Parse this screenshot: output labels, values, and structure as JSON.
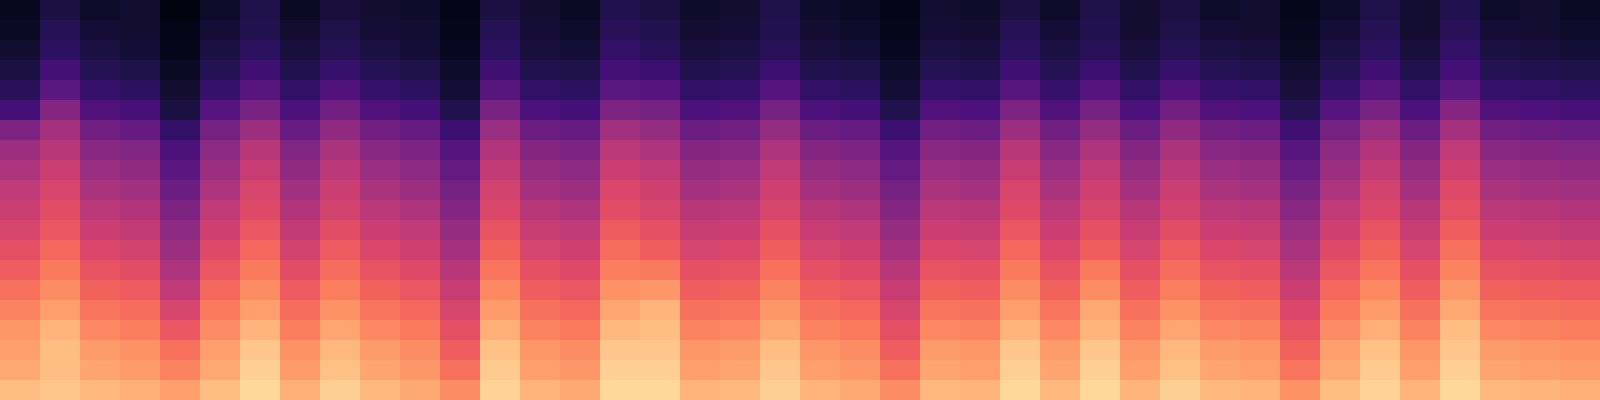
{
  "chart_data": {
    "type": "heatmap",
    "color": "magma",
    "tick_labels": false,
    "zlim": [
      0,
      100
    ],
    "z": [
      [
        6,
        12,
        8,
        9,
        3,
        8,
        13,
        7,
        11,
        9,
        8,
        4,
        12,
        9,
        7,
        14,
        12,
        8,
        9,
        13,
        8,
        7,
        4,
        9,
        8,
        12,
        8,
        13,
        9,
        12,
        8,
        9,
        5,
        8,
        13,
        9,
        14,
        8,
        9,
        7
      ],
      [
        7,
        15,
        10,
        9,
        4,
        10,
        14,
        9,
        13,
        10,
        9,
        5,
        15,
        10,
        8,
        16,
        14,
        9,
        10,
        14,
        9,
        8,
        5,
        10,
        9,
        15,
        10,
        14,
        9,
        13,
        10,
        9,
        6,
        10,
        15,
        9,
        16,
        10,
        9,
        8
      ],
      [
        9,
        17,
        12,
        10,
        5,
        12,
        17,
        11,
        15,
        12,
        10,
        6,
        17,
        11,
        10,
        18,
        16,
        11,
        12,
        16,
        11,
        10,
        6,
        12,
        11,
        17,
        12,
        16,
        11,
        15,
        12,
        11,
        7,
        12,
        17,
        11,
        18,
        12,
        11,
        10
      ],
      [
        12,
        22,
        15,
        13,
        7,
        15,
        21,
        14,
        19,
        15,
        13,
        8,
        21,
        14,
        13,
        22,
        20,
        14,
        15,
        20,
        14,
        13,
        8,
        15,
        14,
        21,
        15,
        20,
        14,
        19,
        15,
        14,
        9,
        15,
        21,
        14,
        22,
        15,
        14,
        13
      ],
      [
        16,
        28,
        19,
        17,
        9,
        19,
        27,
        18,
        25,
        19,
        17,
        10,
        27,
        18,
        17,
        28,
        26,
        18,
        19,
        26,
        18,
        17,
        10,
        19,
        18,
        27,
        19,
        26,
        18,
        25,
        19,
        18,
        11,
        19,
        27,
        18,
        28,
        19,
        18,
        17
      ],
      [
        22,
        38,
        25,
        23,
        12,
        26,
        35,
        24,
        33,
        25,
        22,
        14,
        35,
        24,
        22,
        36,
        34,
        24,
        25,
        34,
        24,
        22,
        14,
        25,
        24,
        36,
        25,
        34,
        24,
        33,
        25,
        24,
        15,
        26,
        35,
        24,
        38,
        25,
        24,
        23
      ],
      [
        36,
        46,
        33,
        30,
        18,
        34,
        44,
        31,
        41,
        33,
        30,
        20,
        43,
        32,
        30,
        45,
        42,
        32,
        33,
        42,
        32,
        30,
        20,
        33,
        32,
        44,
        33,
        42,
        32,
        41,
        33,
        32,
        21,
        34,
        43,
        32,
        46,
        33,
        32,
        31
      ],
      [
        44,
        50,
        39,
        37,
        24,
        40,
        50,
        37,
        47,
        39,
        36,
        26,
        49,
        38,
        36,
        51,
        48,
        38,
        39,
        48,
        38,
        36,
        26,
        39,
        38,
        50,
        39,
        48,
        38,
        47,
        39,
        38,
        27,
        40,
        49,
        38,
        52,
        39,
        38,
        37
      ],
      [
        48,
        55,
        43,
        41,
        28,
        44,
        54,
        41,
        51,
        43,
        40,
        30,
        53,
        42,
        40,
        55,
        52,
        42,
        43,
        52,
        42,
        40,
        30,
        43,
        42,
        54,
        43,
        52,
        42,
        51,
        43,
        42,
        31,
        44,
        53,
        42,
        56,
        43,
        42,
        41
      ],
      [
        52,
        58,
        47,
        45,
        32,
        48,
        58,
        45,
        55,
        47,
        44,
        34,
        57,
        46,
        44,
        59,
        56,
        46,
        47,
        56,
        46,
        44,
        34,
        47,
        46,
        58,
        47,
        56,
        46,
        55,
        47,
        46,
        35,
        48,
        57,
        46,
        60,
        47,
        46,
        45
      ],
      [
        55,
        61,
        51,
        49,
        36,
        52,
        60,
        49,
        57,
        51,
        48,
        38,
        59,
        50,
        48,
        61,
        58,
        50,
        51,
        58,
        50,
        48,
        38,
        51,
        50,
        60,
        51,
        58,
        50,
        57,
        51,
        50,
        39,
        52,
        59,
        50,
        62,
        51,
        50,
        49
      ],
      [
        58,
        64,
        55,
        53,
        40,
        56,
        64,
        53,
        61,
        55,
        52,
        42,
        63,
        54,
        52,
        65,
        62,
        54,
        55,
        62,
        54,
        52,
        42,
        55,
        54,
        64,
        55,
        62,
        54,
        61,
        55,
        54,
        43,
        56,
        63,
        54,
        66,
        55,
        54,
        53
      ],
      [
        62,
        68,
        59,
        57,
        44,
        60,
        68,
        57,
        65,
        59,
        56,
        46,
        67,
        58,
        56,
        69,
        66,
        58,
        59,
        66,
        58,
        56,
        46,
        59,
        58,
        68,
        59,
        66,
        58,
        65,
        59,
        58,
        47,
        60,
        67,
        58,
        70,
        59,
        58,
        57
      ],
      [
        66,
        72,
        63,
        61,
        48,
        64,
        72,
        61,
        69,
        63,
        60,
        50,
        71,
        62,
        60,
        73,
        72,
        62,
        63,
        70,
        62,
        60,
        50,
        63,
        62,
        72,
        63,
        72,
        62,
        69,
        63,
        62,
        51,
        64,
        71,
        62,
        74,
        63,
        62,
        61
      ],
      [
        70,
        76,
        67,
        65,
        52,
        68,
        76,
        65,
        73,
        67,
        64,
        54,
        75,
        66,
        64,
        77,
        78,
        66,
        67,
        74,
        66,
        64,
        54,
        67,
        66,
        76,
        67,
        76,
        66,
        73,
        67,
        66,
        55,
        68,
        75,
        66,
        78,
        67,
        66,
        65
      ],
      [
        74,
        80,
        71,
        69,
        58,
        72,
        80,
        69,
        77,
        71,
        68,
        58,
        79,
        70,
        68,
        81,
        84,
        70,
        71,
        78,
        70,
        68,
        58,
        71,
        70,
        80,
        71,
        82,
        70,
        77,
        71,
        70,
        59,
        72,
        79,
        70,
        82,
        71,
        70,
        69
      ],
      [
        78,
        84,
        75,
        73,
        64,
        76,
        84,
        73,
        81,
        75,
        72,
        62,
        83,
        74,
        72,
        85,
        86,
        74,
        75,
        82,
        74,
        72,
        62,
        75,
        74,
        84,
        75,
        84,
        74,
        81,
        75,
        74,
        63,
        76,
        83,
        74,
        86,
        75,
        74,
        73
      ],
      [
        80,
        86,
        79,
        77,
        70,
        80,
        88,
        77,
        85,
        79,
        76,
        66,
        87,
        78,
        76,
        88,
        88,
        78,
        79,
        86,
        78,
        76,
        66,
        79,
        78,
        88,
        79,
        88,
        78,
        85,
        79,
        78,
        67,
        80,
        87,
        78,
        88,
        79,
        78,
        77
      ],
      [
        82,
        86,
        81,
        79,
        74,
        82,
        90,
        79,
        87,
        81,
        78,
        70,
        89,
        80,
        78,
        90,
        90,
        80,
        81,
        88,
        80,
        78,
        70,
        81,
        80,
        90,
        81,
        90,
        80,
        87,
        81,
        80,
        71,
        82,
        89,
        80,
        90,
        81,
        80,
        79
      ],
      [
        86,
        88,
        85,
        83,
        80,
        86,
        92,
        83,
        90,
        85,
        82,
        76,
        91,
        84,
        82,
        92,
        92,
        84,
        85,
        90,
        84,
        82,
        76,
        85,
        84,
        92,
        85,
        92,
        84,
        90,
        85,
        84,
        77,
        86,
        91,
        84,
        92,
        85,
        84,
        83
      ]
    ]
  }
}
